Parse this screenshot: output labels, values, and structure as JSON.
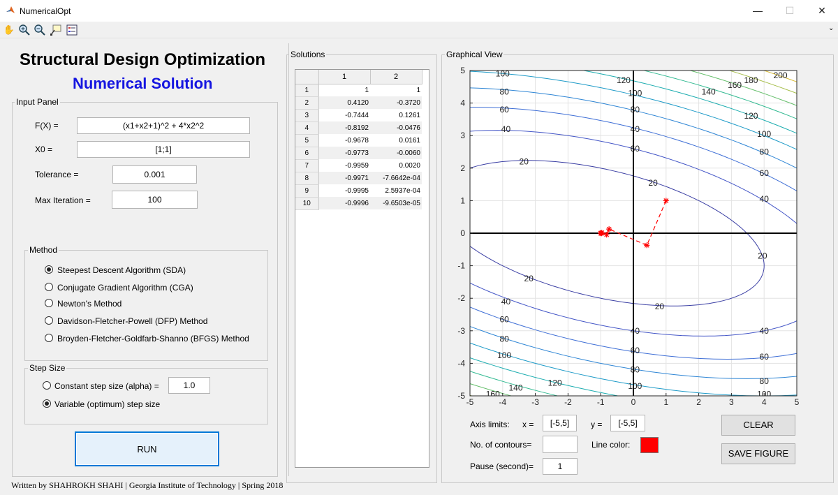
{
  "window": {
    "title": "NumericalOpt",
    "min": "—",
    "max": "☐",
    "close": "✕"
  },
  "app": {
    "title": "Structural Design Optimization",
    "subtitle": "Numerical Solution"
  },
  "input_panel": {
    "title": "Input Panel",
    "fx_label": "F(X) =",
    "fx_value": "(x1+x2+1)^2 + 4*x2^2",
    "x0_label": "X0 =",
    "x0_value": "[1;1]",
    "tol_label": "Tolerance =",
    "tol_value": "0.001",
    "maxit_label": "Max Iteration =",
    "maxit_value": "100"
  },
  "method": {
    "title": "Method",
    "options": [
      {
        "label": "Steepest Descent Algorithm (SDA)",
        "selected": true
      },
      {
        "label": "Conjugate Gradient Algorithm (CGA)",
        "selected": false
      },
      {
        "label": "Newton's Method",
        "selected": false
      },
      {
        "label": "Davidson-Fletcher-Powell (DFP) Method",
        "selected": false
      },
      {
        "label": "Broyden-Fletcher-Goldfarb-Shanno (BFGS) Method",
        "selected": false
      }
    ]
  },
  "step": {
    "title": "Step Size",
    "constant_label": "Constant step size  (alpha) =",
    "alpha_value": "1.0",
    "variable_label": "Variable (optimum) step size",
    "selected": "variable"
  },
  "run_label": "RUN",
  "footer": "Written by SHAHROKH SHAHI | Georgia Institute of Technology | Spring 2018",
  "solutions": {
    "title": "Solutions",
    "columns": [
      "1",
      "2"
    ],
    "rows": [
      [
        "1",
        "1",
        "1"
      ],
      [
        "2",
        "0.4120",
        "-0.3720"
      ],
      [
        "3",
        "-0.7444",
        "0.1261"
      ],
      [
        "4",
        "-0.8192",
        "-0.0476"
      ],
      [
        "5",
        "-0.9678",
        "0.0161"
      ],
      [
        "6",
        "-0.9773",
        "-0.0060"
      ],
      [
        "7",
        "-0.9959",
        "0.0020"
      ],
      [
        "8",
        "-0.9971",
        "-7.6642e-04"
      ],
      [
        "9",
        "-0.9995",
        "2.5937e-04"
      ],
      [
        "10",
        "-0.9996",
        "-9.6503e-05"
      ]
    ]
  },
  "graph": {
    "title": "Graphical View",
    "axis_limits_label": "Axis limits:",
    "x_label": "x =",
    "x_value": "[-5,5]",
    "y_label": "y =",
    "y_value": "[-5,5]",
    "contours_label": "No. of contours=",
    "contours_value": "",
    "line_color_label": "Line color:",
    "line_color": "#ff0000",
    "pause_label": "Pause (second)=",
    "pause_value": "1",
    "clear_label": "CLEAR",
    "save_label": "SAVE  FIGURE"
  },
  "chart_data": {
    "type": "contour",
    "function": "(x1+x2+1)^2 + 4*x2^2",
    "xlim": [
      -5,
      5
    ],
    "ylim": [
      -5,
      5
    ],
    "xticks": [
      -5,
      -4,
      -3,
      -2,
      -1,
      0,
      1,
      2,
      3,
      4,
      5
    ],
    "yticks": [
      -5,
      -4,
      -3,
      -2,
      -1,
      0,
      1,
      2,
      3,
      4,
      5
    ],
    "grid": true,
    "contour_levels": [
      20,
      40,
      60,
      80,
      100,
      120,
      140,
      160,
      180,
      200
    ],
    "contour_colors": [
      "#3b3fa4",
      "#4557c7",
      "#3f6fd6",
      "#2f86d5",
      "#1f9bc8",
      "#1dadb0",
      "#33ba92",
      "#68c06e",
      "#a6be4a",
      "#d9bb35"
    ],
    "path": {
      "x": [
        1,
        0.412,
        -0.7444,
        -0.8192,
        -0.9678,
        -0.9773,
        -0.9959,
        -0.9971,
        -0.9995,
        -0.9996
      ],
      "y": [
        1,
        -0.372,
        0.1261,
        -0.0476,
        0.0161,
        -0.006,
        0.002,
        -0.00076642,
        0.00025937,
        -9.6503e-05
      ]
    }
  }
}
